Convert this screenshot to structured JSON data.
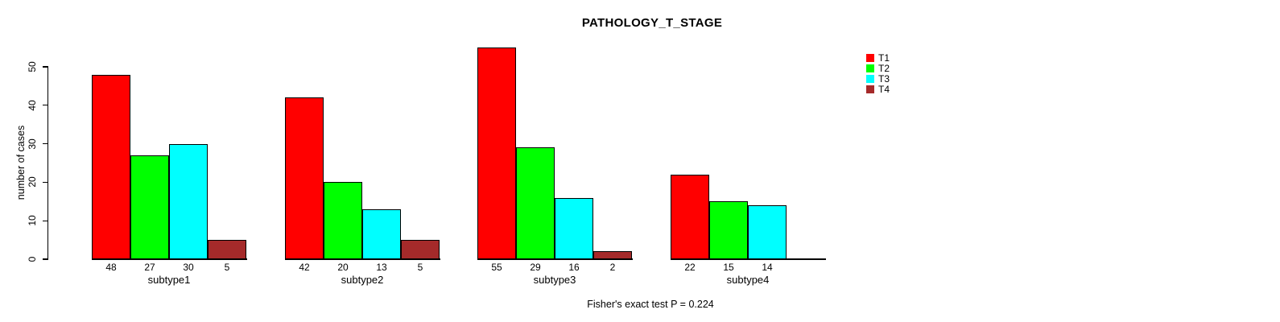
{
  "chart_data": {
    "type": "bar",
    "title": "PATHOLOGY_T_STAGE",
    "ylabel": "number of cases",
    "annotation": "Fisher's exact test P = 0.224",
    "categories": [
      "subtype1",
      "subtype2",
      "subtype3",
      "subtype4"
    ],
    "series": [
      {
        "name": "T1",
        "color": "#FF0000",
        "values": [
          48,
          42,
          55,
          22
        ]
      },
      {
        "name": "T2",
        "color": "#00FF00",
        "values": [
          27,
          20,
          29,
          15
        ]
      },
      {
        "name": "T3",
        "color": "#00FFFF",
        "values": [
          30,
          13,
          16,
          14
        ]
      },
      {
        "name": "T4",
        "color": "#A52A2A",
        "values": [
          5,
          5,
          2,
          0
        ]
      }
    ],
    "yticks": [
      0,
      10,
      20,
      30,
      40,
      50
    ],
    "ylim": [
      0,
      50
    ],
    "grid": false,
    "legend": {
      "position": "top-right",
      "entries": [
        "T1",
        "T2",
        "T3",
        "T4"
      ]
    },
    "value_labels_shown": "under each bar; zero-count bars have no bar and no label"
  }
}
